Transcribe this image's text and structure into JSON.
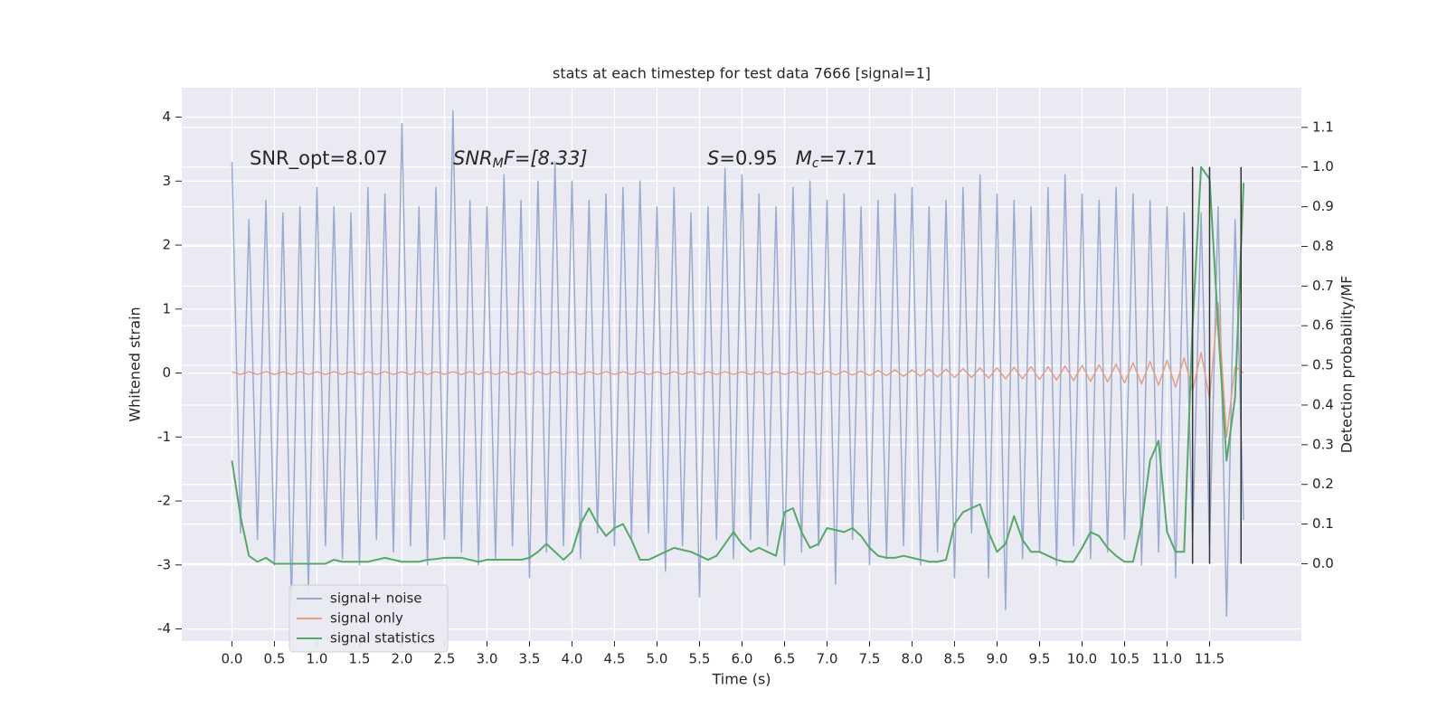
{
  "chart_data": {
    "type": "line",
    "title": "stats at each timestep for test data 7666 [signal=1]",
    "xlabel": "Time (s)",
    "ylabel": "Whitened strain",
    "y2label": "Detection probability/MF",
    "annotations": [
      {
        "parts": [
          "SNR_opt=8.07"
        ]
      },
      {
        "parts": [
          "SNR",
          "M",
          "F=[8.33]"
        ]
      },
      {
        "parts": [
          "S",
          "=0.95   ",
          "M",
          "c",
          "=7.71"
        ]
      }
    ],
    "x": [
      0.0,
      0.1,
      0.2,
      0.3,
      0.4,
      0.5,
      0.6,
      0.7,
      0.8,
      0.9,
      1.0,
      1.1,
      1.2,
      1.3,
      1.4,
      1.5,
      1.6,
      1.7,
      1.8,
      1.9,
      2.0,
      2.1,
      2.2,
      2.3,
      2.4,
      2.5,
      2.6,
      2.7,
      2.8,
      2.9,
      3.0,
      3.1,
      3.2,
      3.3,
      3.4,
      3.5,
      3.6,
      3.7,
      3.8,
      3.9,
      4.0,
      4.1,
      4.2,
      4.3,
      4.4,
      4.5,
      4.6,
      4.7,
      4.8,
      4.9,
      5.0,
      5.1,
      5.2,
      5.3,
      5.4,
      5.5,
      5.6,
      5.7,
      5.8,
      5.9,
      6.0,
      6.1,
      6.2,
      6.3,
      6.4,
      6.5,
      6.6,
      6.7,
      6.8,
      6.9,
      7.0,
      7.1,
      7.2,
      7.3,
      7.4,
      7.5,
      7.6,
      7.7,
      7.8,
      7.9,
      8.0,
      8.1,
      8.2,
      8.3,
      8.4,
      8.5,
      8.6,
      8.7,
      8.8,
      8.9,
      9.0,
      9.1,
      9.2,
      9.3,
      9.4,
      9.5,
      9.6,
      9.7,
      9.8,
      9.9,
      10.0,
      10.1,
      10.2,
      10.3,
      10.4,
      10.5,
      10.6,
      10.7,
      10.8,
      10.9,
      11.0,
      11.1,
      11.2,
      11.3,
      11.4,
      11.5,
      11.6,
      11.7,
      11.8,
      11.9
    ],
    "series": [
      {
        "name": "signal+ noise",
        "color": "#9aabd1",
        "values": [
          3.3,
          -2.5,
          2.4,
          -2.6,
          2.7,
          -3.0,
          2.5,
          -3.6,
          2.6,
          -3.4,
          2.9,
          -2.7,
          2.6,
          -2.9,
          2.5,
          -3.0,
          2.9,
          -2.6,
          2.8,
          -2.8,
          3.9,
          -2.7,
          2.6,
          -3.0,
          2.9,
          -2.6,
          4.1,
          -2.8,
          2.7,
          -3.0,
          2.6,
          -2.9,
          3.1,
          -2.7,
          2.7,
          -3.2,
          3.0,
          -2.8,
          3.3,
          -2.7,
          3.0,
          -2.9,
          2.7,
          -2.5,
          2.8,
          -2.7,
          2.9,
          -2.6,
          3.0,
          -2.5,
          2.6,
          -3.1,
          2.9,
          -2.7,
          2.5,
          -3.5,
          2.6,
          -2.6,
          3.2,
          -2.9,
          3.1,
          -2.6,
          2.8,
          -2.7,
          2.6,
          -3.0,
          2.9,
          -2.8,
          3.0,
          -2.7,
          2.7,
          -3.3,
          2.8,
          -2.6,
          2.6,
          -3.0,
          2.7,
          -2.9,
          2.8,
          -2.7,
          2.9,
          -3.0,
          2.6,
          -2.8,
          2.7,
          -3.2,
          2.9,
          -2.5,
          3.1,
          -3.2,
          2.8,
          -3.7,
          2.7,
          -2.9,
          2.6,
          -2.8,
          2.9,
          -3.0,
          3.1,
          -2.7,
          2.8,
          -2.9,
          2.7,
          -2.8,
          2.9,
          -2.6,
          2.8,
          -3.0,
          2.7,
          -2.8,
          2.6,
          -3.2,
          2.5,
          -2.6,
          2.5,
          -2.7,
          2.6,
          -3.8,
          2.4,
          -2.3
        ]
      },
      {
        "name": "signal only",
        "color": "#e5a084",
        "values": [
          0.02,
          -0.02,
          0.02,
          -0.02,
          0.02,
          -0.02,
          0.02,
          -0.02,
          0.02,
          -0.02,
          0.02,
          -0.02,
          0.02,
          -0.02,
          0.02,
          -0.02,
          0.02,
          -0.02,
          0.02,
          -0.02,
          0.02,
          -0.02,
          0.02,
          -0.02,
          0.02,
          -0.02,
          0.02,
          -0.02,
          0.02,
          -0.02,
          0.02,
          -0.02,
          0.02,
          -0.02,
          0.02,
          -0.02,
          0.02,
          -0.02,
          0.02,
          -0.02,
          0.02,
          -0.02,
          0.02,
          -0.02,
          0.02,
          -0.02,
          0.02,
          -0.02,
          0.02,
          -0.02,
          0.02,
          -0.02,
          0.02,
          -0.02,
          0.02,
          -0.02,
          0.02,
          -0.02,
          0.02,
          -0.02,
          0.02,
          -0.02,
          0.02,
          -0.02,
          0.02,
          -0.02,
          0.02,
          -0.02,
          0.02,
          -0.02,
          0.03,
          -0.03,
          0.03,
          -0.03,
          0.03,
          -0.04,
          0.04,
          -0.04,
          0.05,
          -0.05,
          0.05,
          -0.05,
          0.06,
          -0.06,
          0.06,
          -0.07,
          0.07,
          -0.07,
          0.08,
          -0.08,
          0.08,
          -0.09,
          0.09,
          -0.09,
          0.1,
          -0.1,
          0.1,
          -0.11,
          0.11,
          -0.12,
          0.12,
          -0.13,
          0.13,
          -0.14,
          0.14,
          -0.15,
          0.16,
          -0.17,
          0.18,
          -0.19,
          0.2,
          -0.22,
          0.24,
          -0.28,
          0.32,
          -0.4,
          1.1,
          -1.0,
          0.1,
          0.0
        ]
      },
      {
        "name": "signal statistics",
        "color": "#55a868",
        "axis": "y2",
        "values": [
          0.26,
          0.12,
          0.02,
          0.005,
          0.015,
          0.0,
          0.0,
          0.0,
          0.0,
          0.0,
          0.0,
          0.0,
          0.01,
          0.005,
          0.005,
          0.005,
          0.005,
          0.01,
          0.015,
          0.01,
          0.005,
          0.005,
          0.005,
          0.01,
          0.012,
          0.015,
          0.015,
          0.015,
          0.01,
          0.005,
          0.01,
          0.01,
          0.01,
          0.01,
          0.01,
          0.015,
          0.03,
          0.05,
          0.03,
          0.01,
          0.03,
          0.1,
          0.14,
          0.1,
          0.07,
          0.09,
          0.1,
          0.06,
          0.01,
          0.01,
          0.02,
          0.03,
          0.04,
          0.035,
          0.03,
          0.02,
          0.01,
          0.02,
          0.05,
          0.08,
          0.05,
          0.03,
          0.04,
          0.03,
          0.02,
          0.13,
          0.14,
          0.08,
          0.04,
          0.05,
          0.09,
          0.085,
          0.08,
          0.09,
          0.07,
          0.04,
          0.02,
          0.015,
          0.015,
          0.02,
          0.015,
          0.01,
          0.005,
          0.005,
          0.01,
          0.1,
          0.13,
          0.14,
          0.15,
          0.08,
          0.03,
          0.05,
          0.12,
          0.06,
          0.03,
          0.03,
          0.02,
          0.01,
          0.005,
          0.005,
          0.04,
          0.08,
          0.07,
          0.04,
          0.02,
          0.005,
          0.005,
          0.1,
          0.26,
          0.31,
          0.08,
          0.03,
          0.03,
          0.6,
          1.0,
          0.97,
          0.6,
          0.26,
          0.42,
          0.96
        ]
      }
    ],
    "vlines": {
      "x": [
        11.3,
        11.5,
        11.87
      ],
      "ymin": 0,
      "ymax": 1,
      "axis": "y2",
      "color": "#333333"
    },
    "xlim": [
      -0.59,
      12.58
    ],
    "xticks": [
      {
        "value": 0,
        "label": "0.0"
      },
      0.5,
      {
        "value": 1,
        "label": "1.0"
      },
      1.5,
      {
        "value": 2,
        "label": "2.0"
      },
      2.5,
      {
        "value": 3,
        "label": "3.0"
      },
      3.5,
      {
        "value": 4,
        "label": "4.0"
      },
      4.5,
      {
        "value": 5,
        "label": "5.0"
      },
      5.5,
      {
        "value": 6,
        "label": "6.0"
      },
      6.5,
      {
        "value": 7,
        "label": "7.0"
      },
      7.5,
      {
        "value": 8,
        "label": "8.0"
      },
      8.5,
      {
        "value": 9,
        "label": "9.0"
      },
      9.5,
      {
        "value": 10,
        "label": "10.0"
      },
      10.5,
      {
        "value": 11,
        "label": "11.0"
      },
      11.5
    ],
    "ylim": [
      -4.19,
      4.46
    ],
    "yticks": [
      -4,
      -3,
      -2,
      -1,
      0,
      1,
      2,
      3,
      4
    ],
    "y2lim": [
      -0.195,
      1.2
    ],
    "y2ticks": [
      {
        "value": 0,
        "label": "0.0"
      },
      0.1,
      0.2,
      0.3,
      0.4,
      0.5,
      0.6,
      0.7,
      0.8,
      0.9,
      {
        "value": 1,
        "label": "1.0"
      },
      1.1
    ],
    "grid": true,
    "legend": "lower left"
  }
}
